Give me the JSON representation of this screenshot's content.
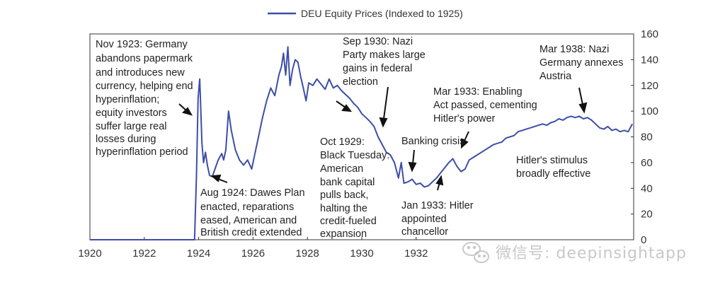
{
  "chart_data": {
    "type": "line",
    "title": "",
    "xlabel": "",
    "ylabel": "",
    "xlim": [
      1920,
      1940
    ],
    "ylim": [
      0,
      160
    ],
    "x_ticks": [
      "1920",
      "1922",
      "1924",
      "1926",
      "1928",
      "1930",
      "1932"
    ],
    "y_ticks": [
      "0",
      "20",
      "40",
      "60",
      "80",
      "100",
      "120",
      "140",
      "160"
    ],
    "grid": false,
    "legend": {
      "position": "top-center",
      "entries": [
        "DEU Equity Prices (Indexed to 1925)"
      ]
    },
    "series": [
      {
        "name": "DEU Equity Prices (Indexed to 1925)",
        "color": "#3d4ea8",
        "x": [
          1920.0,
          1923.85,
          1923.92,
          1923.98,
          1924.04,
          1924.08,
          1924.12,
          1924.18,
          1924.25,
          1924.32,
          1924.4,
          1924.5,
          1924.6,
          1924.72,
          1924.85,
          1924.92,
          1925.0,
          1925.1,
          1925.2,
          1925.35,
          1925.5,
          1925.65,
          1925.8,
          1925.95,
          1926.05,
          1926.2,
          1926.35,
          1926.5,
          1926.65,
          1926.8,
          1926.95,
          1927.05,
          1927.12,
          1927.2,
          1927.28,
          1927.36,
          1927.45,
          1927.55,
          1927.65,
          1927.75,
          1927.85,
          1927.95,
          1928.05,
          1928.2,
          1928.35,
          1928.5,
          1928.65,
          1928.8,
          1928.95,
          1929.1,
          1929.25,
          1929.4,
          1929.55,
          1929.7,
          1929.85,
          1930.0,
          1930.15,
          1930.3,
          1930.45,
          1930.6,
          1930.75,
          1930.9,
          1931.05,
          1931.2,
          1931.35,
          1931.45,
          1931.55,
          1931.7,
          1931.85,
          1932.0,
          1932.15,
          1932.3,
          1932.45,
          1932.6,
          1932.75,
          1932.9,
          1933.05,
          1933.2,
          1933.35,
          1933.5,
          1933.65,
          1933.8,
          1933.95,
          1934.1,
          1934.25,
          1934.4,
          1934.55,
          1934.7,
          1934.85,
          1935.0,
          1935.15,
          1935.3,
          1935.45,
          1935.6,
          1935.75,
          1935.9,
          1936.05,
          1936.2,
          1936.35,
          1936.5,
          1936.65,
          1936.8,
          1936.95,
          1937.1,
          1937.25,
          1937.4,
          1937.55,
          1937.7,
          1937.85,
          1938.0,
          1938.15,
          1938.3,
          1938.45,
          1938.6,
          1938.75,
          1938.9,
          1939.05,
          1939.2,
          1939.35,
          1939.5,
          1939.65,
          1939.8,
          1939.95
        ],
        "y": [
          0,
          0,
          50,
          110,
          125,
          100,
          75,
          60,
          68,
          58,
          50,
          49,
          55,
          62,
          67,
          62,
          70,
          100,
          85,
          70,
          62,
          58,
          62,
          55,
          65,
          80,
          95,
          108,
          118,
          112,
          128,
          135,
          145,
          128,
          150,
          120,
          132,
          140,
          138,
          127,
          118,
          108,
          122,
          120,
          125,
          121,
          117,
          125,
          118,
          120,
          116,
          113,
          110,
          106,
          103,
          98,
          95,
          92,
          88,
          80,
          74,
          68,
          66,
          60,
          48,
          60,
          44,
          45,
          47,
          43,
          44,
          41,
          42,
          45,
          48,
          52,
          56,
          60,
          63,
          57,
          53,
          55,
          62,
          64,
          66,
          68,
          70,
          72,
          74,
          75,
          76,
          79,
          80,
          81,
          84,
          85,
          86,
          87,
          88,
          89,
          90,
          89,
          91,
          92,
          94,
          93,
          95,
          96,
          95,
          96,
          94,
          95,
          93,
          90,
          87,
          86,
          88,
          85,
          86,
          84,
          85,
          84,
          90
        ]
      }
    ],
    "annotations": [
      {
        "id": "nov1923",
        "lines": [
          "Nov 1923: Germany",
          "abandons papermark",
          "and introduces new",
          "currency, helping end",
          "hyperinflation;",
          "equity investors",
          "suffer large real",
          "losses during",
          "hyperinflation period"
        ]
      },
      {
        "id": "aug1924",
        "lines": [
          "Aug 1924: Dawes Plan",
          "enacted, reparations",
          "eased, American and",
          "British credit extended"
        ]
      },
      {
        "id": "sep1930",
        "lines": [
          "Sep 1930: Nazi",
          "Party makes large",
          "gains in federal",
          "election"
        ]
      },
      {
        "id": "oct1929",
        "lines": [
          "Oct 1929:",
          "Black Tuesday:",
          "American",
          "bank capital",
          "pulls back,",
          "halting the",
          "credit-fueled",
          "expansion"
        ]
      },
      {
        "id": "banking",
        "lines": [
          "Banking crisis"
        ]
      },
      {
        "id": "jan1933",
        "lines": [
          "Jan 1933: Hitler",
          "appointed",
          "chancellor"
        ]
      },
      {
        "id": "mar1933",
        "lines": [
          "Mar 1933: Enabling",
          "Act passed, cementing",
          "Hitler's power"
        ]
      },
      {
        "id": "stimulus",
        "lines": [
          "Hitler's stimulus",
          "broadly effective"
        ]
      },
      {
        "id": "mar1938",
        "lines": [
          "Mar 1938: Nazi",
          "Germany annexes",
          "Austria"
        ]
      }
    ]
  },
  "watermark": {
    "icon": "wechat-icon",
    "text": "微信号: deepinsightapp"
  }
}
